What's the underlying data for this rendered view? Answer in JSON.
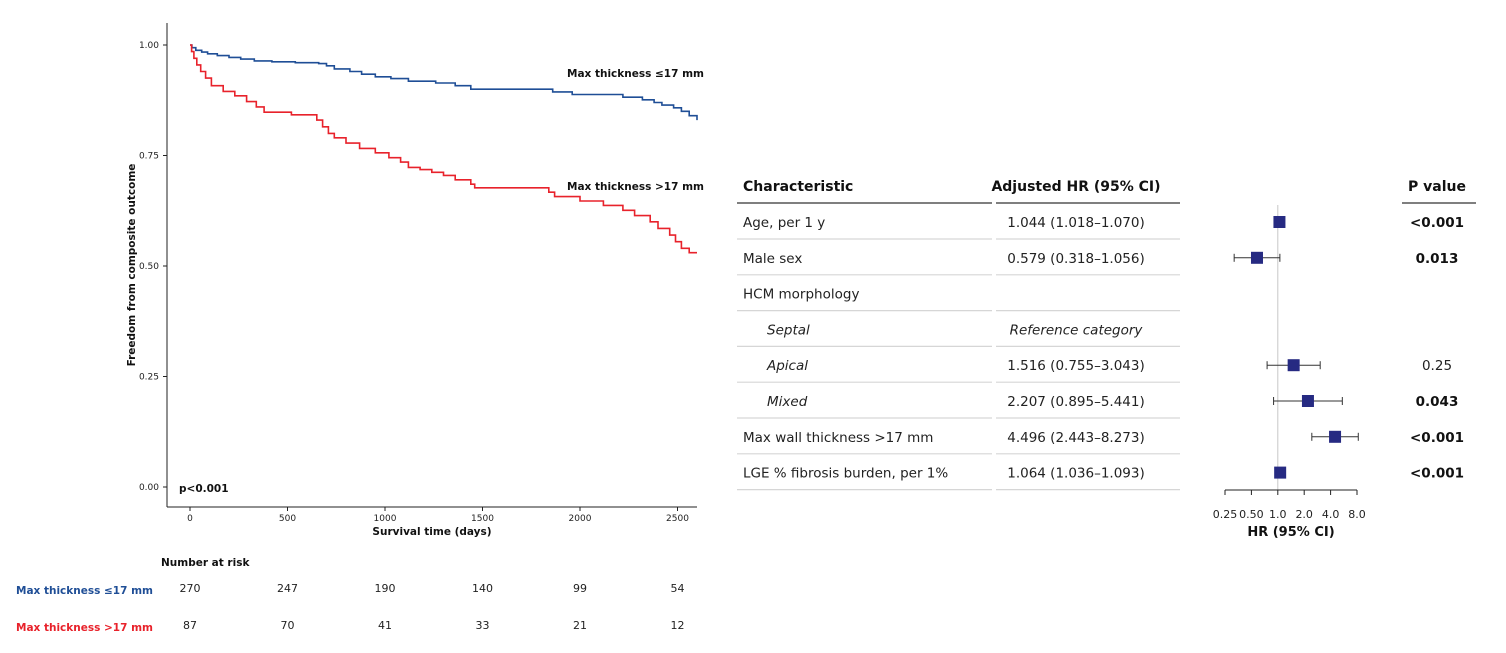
{
  "chart_data": [
    {
      "type": "line",
      "subtype": "kaplan-meier",
      "ylabel": "Freedom from composite outcome",
      "xlabel": "Survival time (days)",
      "xlim": [
        0,
        2600
      ],
      "ylim": [
        0,
        1
      ],
      "x_ticks": [
        "0",
        "500",
        "1000",
        "1500",
        "2000",
        "2500"
      ],
      "y_ticks": [
        "0.00",
        "0.25",
        "0.50",
        "0.75",
        "1.00"
      ],
      "annotation": "p<0.001",
      "colors": {
        "low": "#1f4e96",
        "high": "#e8222b"
      },
      "series": [
        {
          "name": "Max thickness ≤17 mm",
          "color": "#1f4e96",
          "points": [
            [
              0,
              1.0
            ],
            [
              10,
              0.994
            ],
            [
              30,
              0.988
            ],
            [
              60,
              0.984
            ],
            [
              90,
              0.98
            ],
            [
              140,
              0.976
            ],
            [
              200,
              0.972
            ],
            [
              260,
              0.968
            ],
            [
              330,
              0.964
            ],
            [
              420,
              0.962
            ],
            [
              540,
              0.96
            ],
            [
              660,
              0.958
            ],
            [
              700,
              0.953
            ],
            [
              740,
              0.946
            ],
            [
              820,
              0.94
            ],
            [
              880,
              0.934
            ],
            [
              950,
              0.928
            ],
            [
              1030,
              0.924
            ],
            [
              1120,
              0.918
            ],
            [
              1260,
              0.914
            ],
            [
              1360,
              0.908
            ],
            [
              1440,
              0.9
            ],
            [
              1860,
              0.894
            ],
            [
              1960,
              0.888
            ],
            [
              2220,
              0.882
            ],
            [
              2320,
              0.876
            ],
            [
              2380,
              0.87
            ],
            [
              2420,
              0.864
            ],
            [
              2480,
              0.858
            ],
            [
              2520,
              0.85
            ],
            [
              2560,
              0.84
            ],
            [
              2600,
              0.83
            ]
          ]
        },
        {
          "name": "Max thickness >17 mm",
          "color": "#e8222b",
          "points": [
            [
              0,
              1.0
            ],
            [
              8,
              0.985
            ],
            [
              20,
              0.97
            ],
            [
              35,
              0.955
            ],
            [
              55,
              0.94
            ],
            [
              80,
              0.925
            ],
            [
              110,
              0.908
            ],
            [
              170,
              0.895
            ],
            [
              230,
              0.885
            ],
            [
              290,
              0.872
            ],
            [
              340,
              0.86
            ],
            [
              380,
              0.848
            ],
            [
              520,
              0.842
            ],
            [
              650,
              0.83
            ],
            [
              680,
              0.815
            ],
            [
              710,
              0.8
            ],
            [
              740,
              0.79
            ],
            [
              800,
              0.778
            ],
            [
              870,
              0.766
            ],
            [
              950,
              0.756
            ],
            [
              1020,
              0.745
            ],
            [
              1080,
              0.735
            ],
            [
              1120,
              0.723
            ],
            [
              1180,
              0.718
            ],
            [
              1240,
              0.712
            ],
            [
              1300,
              0.705
            ],
            [
              1360,
              0.695
            ],
            [
              1440,
              0.685
            ],
            [
              1460,
              0.677
            ],
            [
              1840,
              0.667
            ],
            [
              1870,
              0.657
            ],
            [
              2000,
              0.647
            ],
            [
              2120,
              0.637
            ],
            [
              2220,
              0.626
            ],
            [
              2280,
              0.614
            ],
            [
              2360,
              0.6
            ],
            [
              2400,
              0.585
            ],
            [
              2460,
              0.57
            ],
            [
              2490,
              0.555
            ],
            [
              2520,
              0.54
            ],
            [
              2560,
              0.53
            ],
            [
              2600,
              0.53
            ]
          ]
        }
      ],
      "risk_table": {
        "title": "Number at risk",
        "rows": [
          {
            "label": "Max thickness ≤17 mm",
            "color": "#1f4e96",
            "values": [
              "270",
              "247",
              "190",
              "140",
              "99",
              "54"
            ]
          },
          {
            "label": "Max thickness >17 mm",
            "color": "#e8222b",
            "values": [
              "87",
              "70",
              "41",
              "33",
              "21",
              "12"
            ]
          }
        ]
      }
    },
    {
      "type": "forest",
      "scale": "log",
      "xlabel": "HR (95% CI)",
      "x_ticks": [
        "0.25",
        "0.50",
        "1.0",
        "2.0",
        "4.0",
        "8.0"
      ],
      "reference_line": 1.0,
      "headers": {
        "characteristic": "Characteristic",
        "hr": "Adjusted HR (95% CI)",
        "p": "P value"
      },
      "marker_color": "#262a82",
      "rows": [
        {
          "label": "Age, per 1 y",
          "italic": false,
          "hr_text": "1.044 (1.018–1.070)",
          "hr": 1.044,
          "lo": 1.018,
          "hi": 1.07,
          "p": "<0.001",
          "p_bold": true
        },
        {
          "label": "Male sex",
          "italic": false,
          "hr_text": "0.579 (0.318–1.056)",
          "hr": 0.579,
          "lo": 0.318,
          "hi": 1.056,
          "p": "0.013",
          "p_bold": true
        },
        {
          "label": "HCM morphology",
          "italic": false,
          "hr_text": "",
          "hr": null,
          "lo": null,
          "hi": null,
          "p": "",
          "p_bold": false
        },
        {
          "label": "Septal",
          "italic": true,
          "hr_text": "Reference category",
          "hr": null,
          "lo": null,
          "hi": null,
          "p": "",
          "p_bold": false
        },
        {
          "label": "Apical",
          "italic": true,
          "hr_text": "1.516 (0.755–3.043)",
          "hr": 1.516,
          "lo": 0.755,
          "hi": 3.043,
          "p": "0.25",
          "p_bold": false
        },
        {
          "label": "Mixed",
          "italic": true,
          "hr_text": "2.207 (0.895–5.441)",
          "hr": 2.207,
          "lo": 0.895,
          "hi": 5.441,
          "p": "0.043",
          "p_bold": true
        },
        {
          "label": "Max wall thickness >17 mm",
          "italic": false,
          "hr_text": "4.496 (2.443–8.273)",
          "hr": 4.496,
          "lo": 2.443,
          "hi": 8.273,
          "p": "<0.001",
          "p_bold": true
        },
        {
          "label": "LGE % fibrosis burden, per 1%",
          "italic": false,
          "hr_text": "1.064 (1.036–1.093)",
          "hr": 1.064,
          "lo": 1.036,
          "hi": 1.093,
          "p": "<0.001",
          "p_bold": true
        }
      ]
    }
  ]
}
